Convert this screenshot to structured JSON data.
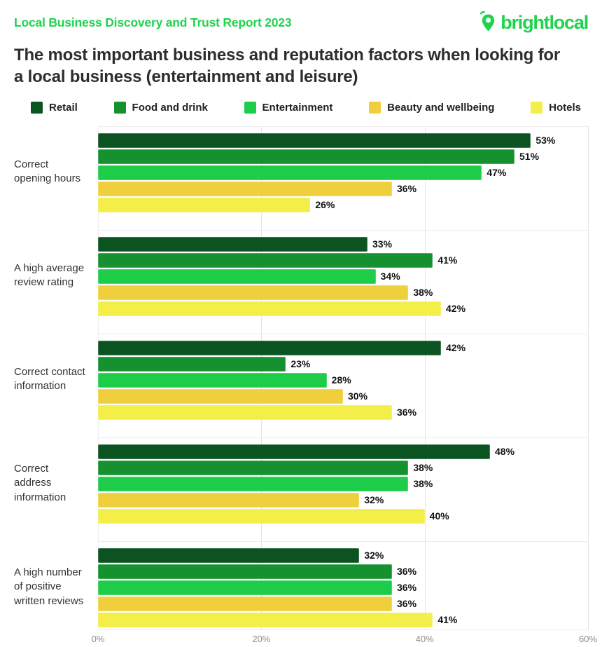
{
  "header": {
    "report_label": "Local Business Discovery and Trust Report 2023",
    "brand": "brightlocal",
    "title": "The most important business and reputation factors when looking for a local business (entertainment and leisure)"
  },
  "colors": {
    "brand_green": "#20d34e",
    "title_text": "#2d2d2d",
    "value_text": "#121212",
    "category_text": "#333333",
    "axis_text": "#8c8c8c",
    "gridline": "#e4e4e4",
    "background": "#ffffff"
  },
  "chart_data": {
    "type": "bar",
    "orientation": "horizontal",
    "unit": "%",
    "xlim": [
      0,
      60
    ],
    "x_ticks": [
      "0%",
      "20%",
      "40%",
      "60%"
    ],
    "x_tick_values": [
      0,
      20,
      40,
      60
    ],
    "grid": "vertical",
    "legend_position": "top",
    "value_label_format": "{v}%",
    "categories": [
      "Correct opening hours",
      "A high average review rating",
      "Correct contact information",
      "Correct address information",
      "A high number of positive written reviews"
    ],
    "series": [
      {
        "name": "Retail",
        "color": "#0b5421",
        "values": [
          53,
          33,
          42,
          48,
          32
        ]
      },
      {
        "name": "Food and drink",
        "color": "#159130",
        "values": [
          51,
          41,
          23,
          38,
          36
        ]
      },
      {
        "name": "Entertainment",
        "color": "#1dcc48",
        "values": [
          47,
          34,
          28,
          38,
          36
        ]
      },
      {
        "name": "Beauty and wellbeing",
        "color": "#f0cf3c",
        "values": [
          36,
          38,
          30,
          32,
          36
        ]
      },
      {
        "name": "Hotels",
        "color": "#f4ee49",
        "values": [
          26,
          42,
          36,
          40,
          41
        ]
      }
    ]
  }
}
